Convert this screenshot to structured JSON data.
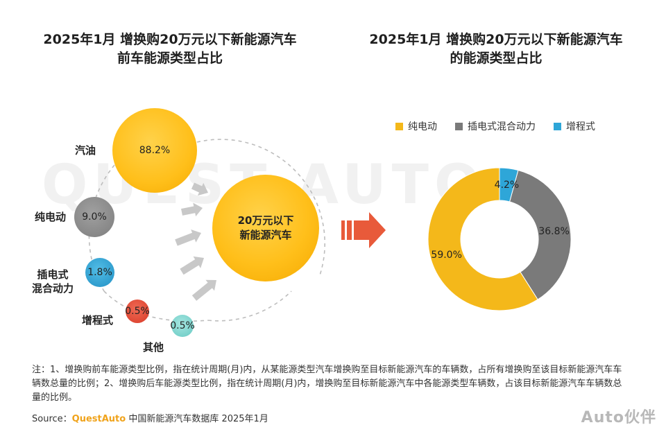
{
  "titles": {
    "left": "2025年1月 增换购20万元以下新能源汽车\n前车能源类型占比",
    "right": "2025年1月 增换购20万元以下新能源汽车\n的能源类型占比"
  },
  "bubbles": [
    {
      "label": "汽油",
      "value": "88.2%",
      "color": "#ffbf1a"
    },
    {
      "label": "纯电动",
      "value": "9.0%",
      "color": "#8a8a8a"
    },
    {
      "label": "插电式\n混合动力",
      "value": "1.8%",
      "color": "#2ea6d8"
    },
    {
      "label": "增程式",
      "value": "0.5%",
      "color": "#e04a36"
    },
    {
      "label": "其他",
      "value": "0.5%",
      "color": "#7fd6d0"
    }
  ],
  "center_bubble": "20万元以下\n新能源汽车",
  "watermark": "QUEST AUTO",
  "legend": [
    {
      "label": "纯电动",
      "color": "#f4b81a"
    },
    {
      "label": "插电式混合动力",
      "color": "#7a7a7a"
    },
    {
      "label": "增程式",
      "color": "#2ea6d8"
    }
  ],
  "chart_data": [
    {
      "type": "bubble",
      "title": "2025年1月 增换购20万元以下新能源汽车前车能源类型占比",
      "categories": [
        "汽油",
        "纯电动",
        "插电式混合动力",
        "增程式",
        "其他"
      ],
      "values": [
        88.2,
        9.0,
        1.8,
        0.5,
        0.5
      ],
      "value_labels": [
        "88.2%",
        "9.0%",
        "1.8%",
        "0.5%",
        "0.5%"
      ]
    },
    {
      "type": "pie",
      "title": "2025年1月 增换购20万元以下新能源汽车的能源类型占比",
      "donut": true,
      "categories": [
        "纯电动",
        "插电式混合动力",
        "增程式"
      ],
      "values": [
        59.0,
        36.8,
        4.2
      ],
      "value_labels": [
        "59.0%",
        "36.8%",
        "4.2%"
      ],
      "colors": [
        "#f4b81a",
        "#7a7a7a",
        "#2ea6d8"
      ],
      "legend": "top"
    }
  ],
  "note": "注：1、增换购前车能源类型比例，指在统计周期(月)内，从某能源类型汽车增换购至目标新能源汽车的车辆数，占所有增换购至该目标新能源汽车车辆数总量的比例；2、增换购后车能源类型比例，指在统计周期(月)内，增换购至目标新能源汽车中各能源类型车辆数，占该目标新能源汽车车辆数总量的比例。",
  "source": {
    "prefix": "Source：",
    "brand": "QuestAuto",
    "suffix": " 中国新能源汽车数据库 2025年1月"
  },
  "corner_logo": "Auto伙伴"
}
